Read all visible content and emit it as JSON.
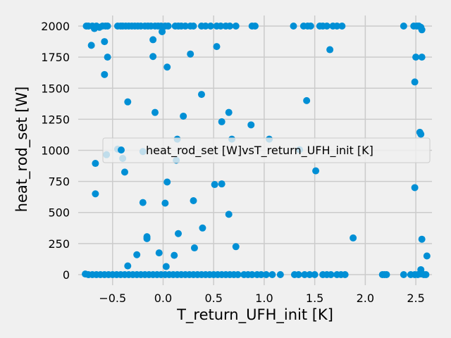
{
  "chart_data": {
    "type": "scatter",
    "title": "",
    "xlabel": "T_return_UFH_init [K]",
    "ylabel": "heat_rod_set [W]",
    "xlim": [
      -0.84,
      2.66
    ],
    "ylim": [
      -85,
      2085
    ],
    "xticks": [
      -0.5,
      0.0,
      0.5,
      1.0,
      1.5,
      2.0,
      2.5
    ],
    "xtick_labels": [
      "−0.5",
      "0.0",
      "0.5",
      "1.0",
      "1.5",
      "2.0",
      "2.5"
    ],
    "yticks": [
      0,
      250,
      500,
      750,
      1000,
      1250,
      1500,
      1750,
      2000
    ],
    "ytick_labels": [
      "0",
      "250",
      "500",
      "750",
      "1000",
      "1250",
      "1500",
      "1750",
      "2000"
    ],
    "grid": true,
    "legend_position": "center-right",
    "color": "#008fd5",
    "background": "#f0f0f0",
    "grid_color": "#cbcbcb",
    "series": [
      {
        "name": "heat_rod_set [W]vsT_return_UFH_init [K]",
        "points": [
          [
            -0.76,
            2000
          ],
          [
            -0.74,
            2000
          ],
          [
            -0.7,
            2000
          ],
          [
            -0.68,
            1980
          ],
          [
            -0.66,
            2000
          ],
          [
            -0.63,
            1990
          ],
          [
            -0.6,
            2000
          ],
          [
            -0.57,
            2000
          ],
          [
            -0.55,
            2000
          ],
          [
            -0.45,
            2000
          ],
          [
            -0.42,
            2000
          ],
          [
            -0.4,
            2000
          ],
          [
            -0.37,
            2000
          ],
          [
            -0.34,
            2000
          ],
          [
            -0.31,
            2000
          ],
          [
            -0.28,
            2000
          ],
          [
            -0.25,
            2000
          ],
          [
            -0.22,
            2000
          ],
          [
            -0.18,
            2000
          ],
          [
            -0.15,
            2000
          ],
          [
            -0.12,
            2000
          ],
          [
            -0.08,
            2000
          ],
          [
            -0.05,
            2000
          ],
          [
            -0.02,
            2000
          ],
          [
            0.02,
            2000
          ],
          [
            0.05,
            2000
          ],
          [
            0.12,
            2000
          ],
          [
            0.15,
            2000
          ],
          [
            0.18,
            2000
          ],
          [
            0.22,
            2000
          ],
          [
            0.27,
            2000
          ],
          [
            0.3,
            2000
          ],
          [
            0.38,
            2000
          ],
          [
            0.42,
            2000
          ],
          [
            0.47,
            2000
          ],
          [
            0.53,
            2000
          ],
          [
            0.57,
            2000
          ],
          [
            0.62,
            2000
          ],
          [
            0.66,
            2000
          ],
          [
            0.72,
            2000
          ],
          [
            0.88,
            2000
          ],
          [
            0.91,
            2000
          ],
          [
            1.29,
            2000
          ],
          [
            1.39,
            2000
          ],
          [
            1.43,
            2000
          ],
          [
            1.46,
            2000
          ],
          [
            1.55,
            2000
          ],
          [
            1.58,
            2000
          ],
          [
            1.62,
            2000
          ],
          [
            1.68,
            2000
          ],
          [
            1.72,
            2000
          ],
          [
            1.77,
            2000
          ],
          [
            2.38,
            2000
          ],
          [
            2.48,
            2000
          ],
          [
            2.51,
            2000
          ],
          [
            2.53,
            2000
          ],
          [
            2.55,
            1990
          ],
          [
            2.56,
            1970
          ],
          [
            -0.71,
            1845
          ],
          [
            -0.58,
            1875
          ],
          [
            -0.55,
            1750
          ],
          [
            -0.1,
            1890
          ],
          [
            -0.1,
            1755
          ],
          [
            -0.01,
            1955
          ],
          [
            0.04,
            1670
          ],
          [
            0.27,
            1775
          ],
          [
            0.53,
            1835
          ],
          [
            1.65,
            1810
          ],
          [
            2.5,
            1750
          ],
          [
            2.56,
            1750
          ],
          [
            -0.58,
            1610
          ],
          [
            2.49,
            1550
          ],
          [
            0.38,
            1450
          ],
          [
            1.42,
            1400
          ],
          [
            -0.35,
            1390
          ],
          [
            -0.08,
            1305
          ],
          [
            0.2,
            1275
          ],
          [
            0.65,
            1305
          ],
          [
            0.58,
            1230
          ],
          [
            0.87,
            1205
          ],
          [
            2.54,
            1145
          ],
          [
            2.55,
            1130
          ],
          [
            0.14,
            1090
          ],
          [
            0.68,
            1090
          ],
          [
            1.05,
            1090
          ],
          [
            -0.45,
            1010
          ],
          [
            1.35,
            1005
          ],
          [
            -0.56,
            965
          ],
          [
            -0.4,
            935
          ],
          [
            -0.2,
            990
          ],
          [
            0.13,
            920
          ],
          [
            -0.67,
            895
          ],
          [
            -0.38,
            825
          ],
          [
            1.51,
            835
          ],
          [
            0.04,
            745
          ],
          [
            0.51,
            725
          ],
          [
            0.58,
            730
          ],
          [
            2.49,
            700
          ],
          [
            -0.67,
            650
          ],
          [
            -0.2,
            580
          ],
          [
            0.02,
            575
          ],
          [
            0.3,
            595
          ],
          [
            0.65,
            485
          ],
          [
            0.39,
            375
          ],
          [
            -0.16,
            305
          ],
          [
            -0.16,
            290
          ],
          [
            0.15,
            330
          ],
          [
            1.88,
            295
          ],
          [
            2.56,
            285
          ],
          [
            0.31,
            215
          ],
          [
            0.72,
            225
          ],
          [
            -0.26,
            160
          ],
          [
            -0.04,
            175
          ],
          [
            0.11,
            155
          ],
          [
            2.61,
            150
          ],
          [
            -0.35,
            70
          ],
          [
            0.03,
            65
          ],
          [
            2.55,
            40
          ],
          [
            -0.77,
            5
          ],
          [
            -0.74,
            0
          ],
          [
            -0.7,
            0
          ],
          [
            -0.66,
            0
          ],
          [
            -0.62,
            0
          ],
          [
            -0.58,
            0
          ],
          [
            -0.54,
            0
          ],
          [
            -0.5,
            0
          ],
          [
            -0.46,
            0
          ],
          [
            -0.42,
            0
          ],
          [
            -0.38,
            0
          ],
          [
            -0.34,
            0
          ],
          [
            -0.3,
            0
          ],
          [
            -0.26,
            0
          ],
          [
            -0.22,
            0
          ],
          [
            -0.18,
            0
          ],
          [
            -0.14,
            0
          ],
          [
            -0.1,
            0
          ],
          [
            -0.06,
            0
          ],
          [
            -0.02,
            0
          ],
          [
            0.02,
            0
          ],
          [
            0.06,
            0
          ],
          [
            0.1,
            0
          ],
          [
            0.14,
            0
          ],
          [
            0.18,
            0
          ],
          [
            0.22,
            0
          ],
          [
            0.26,
            0
          ],
          [
            0.3,
            0
          ],
          [
            0.34,
            0
          ],
          [
            0.38,
            0
          ],
          [
            0.42,
            0
          ],
          [
            0.46,
            0
          ],
          [
            0.5,
            0
          ],
          [
            0.54,
            0
          ],
          [
            0.58,
            0
          ],
          [
            0.62,
            0
          ],
          [
            0.66,
            0
          ],
          [
            0.7,
            0
          ],
          [
            0.74,
            0
          ],
          [
            0.8,
            0
          ],
          [
            0.84,
            0
          ],
          [
            0.88,
            0
          ],
          [
            0.93,
            0
          ],
          [
            0.97,
            0
          ],
          [
            1.02,
            0
          ],
          [
            1.08,
            0
          ],
          [
            1.16,
            0
          ],
          [
            1.3,
            0
          ],
          [
            1.34,
            0
          ],
          [
            1.4,
            0
          ],
          [
            1.45,
            0
          ],
          [
            1.5,
            0
          ],
          [
            1.58,
            0
          ],
          [
            1.62,
            0
          ],
          [
            1.66,
            0
          ],
          [
            1.72,
            0
          ],
          [
            1.76,
            0
          ],
          [
            1.8,
            0
          ],
          [
            2.17,
            0
          ],
          [
            2.19,
            0
          ],
          [
            2.21,
            0
          ],
          [
            2.38,
            0
          ],
          [
            2.45,
            0
          ],
          [
            2.49,
            0
          ],
          [
            2.52,
            0
          ],
          [
            2.55,
            5
          ],
          [
            2.58,
            0
          ],
          [
            2.6,
            0
          ]
        ]
      }
    ]
  }
}
